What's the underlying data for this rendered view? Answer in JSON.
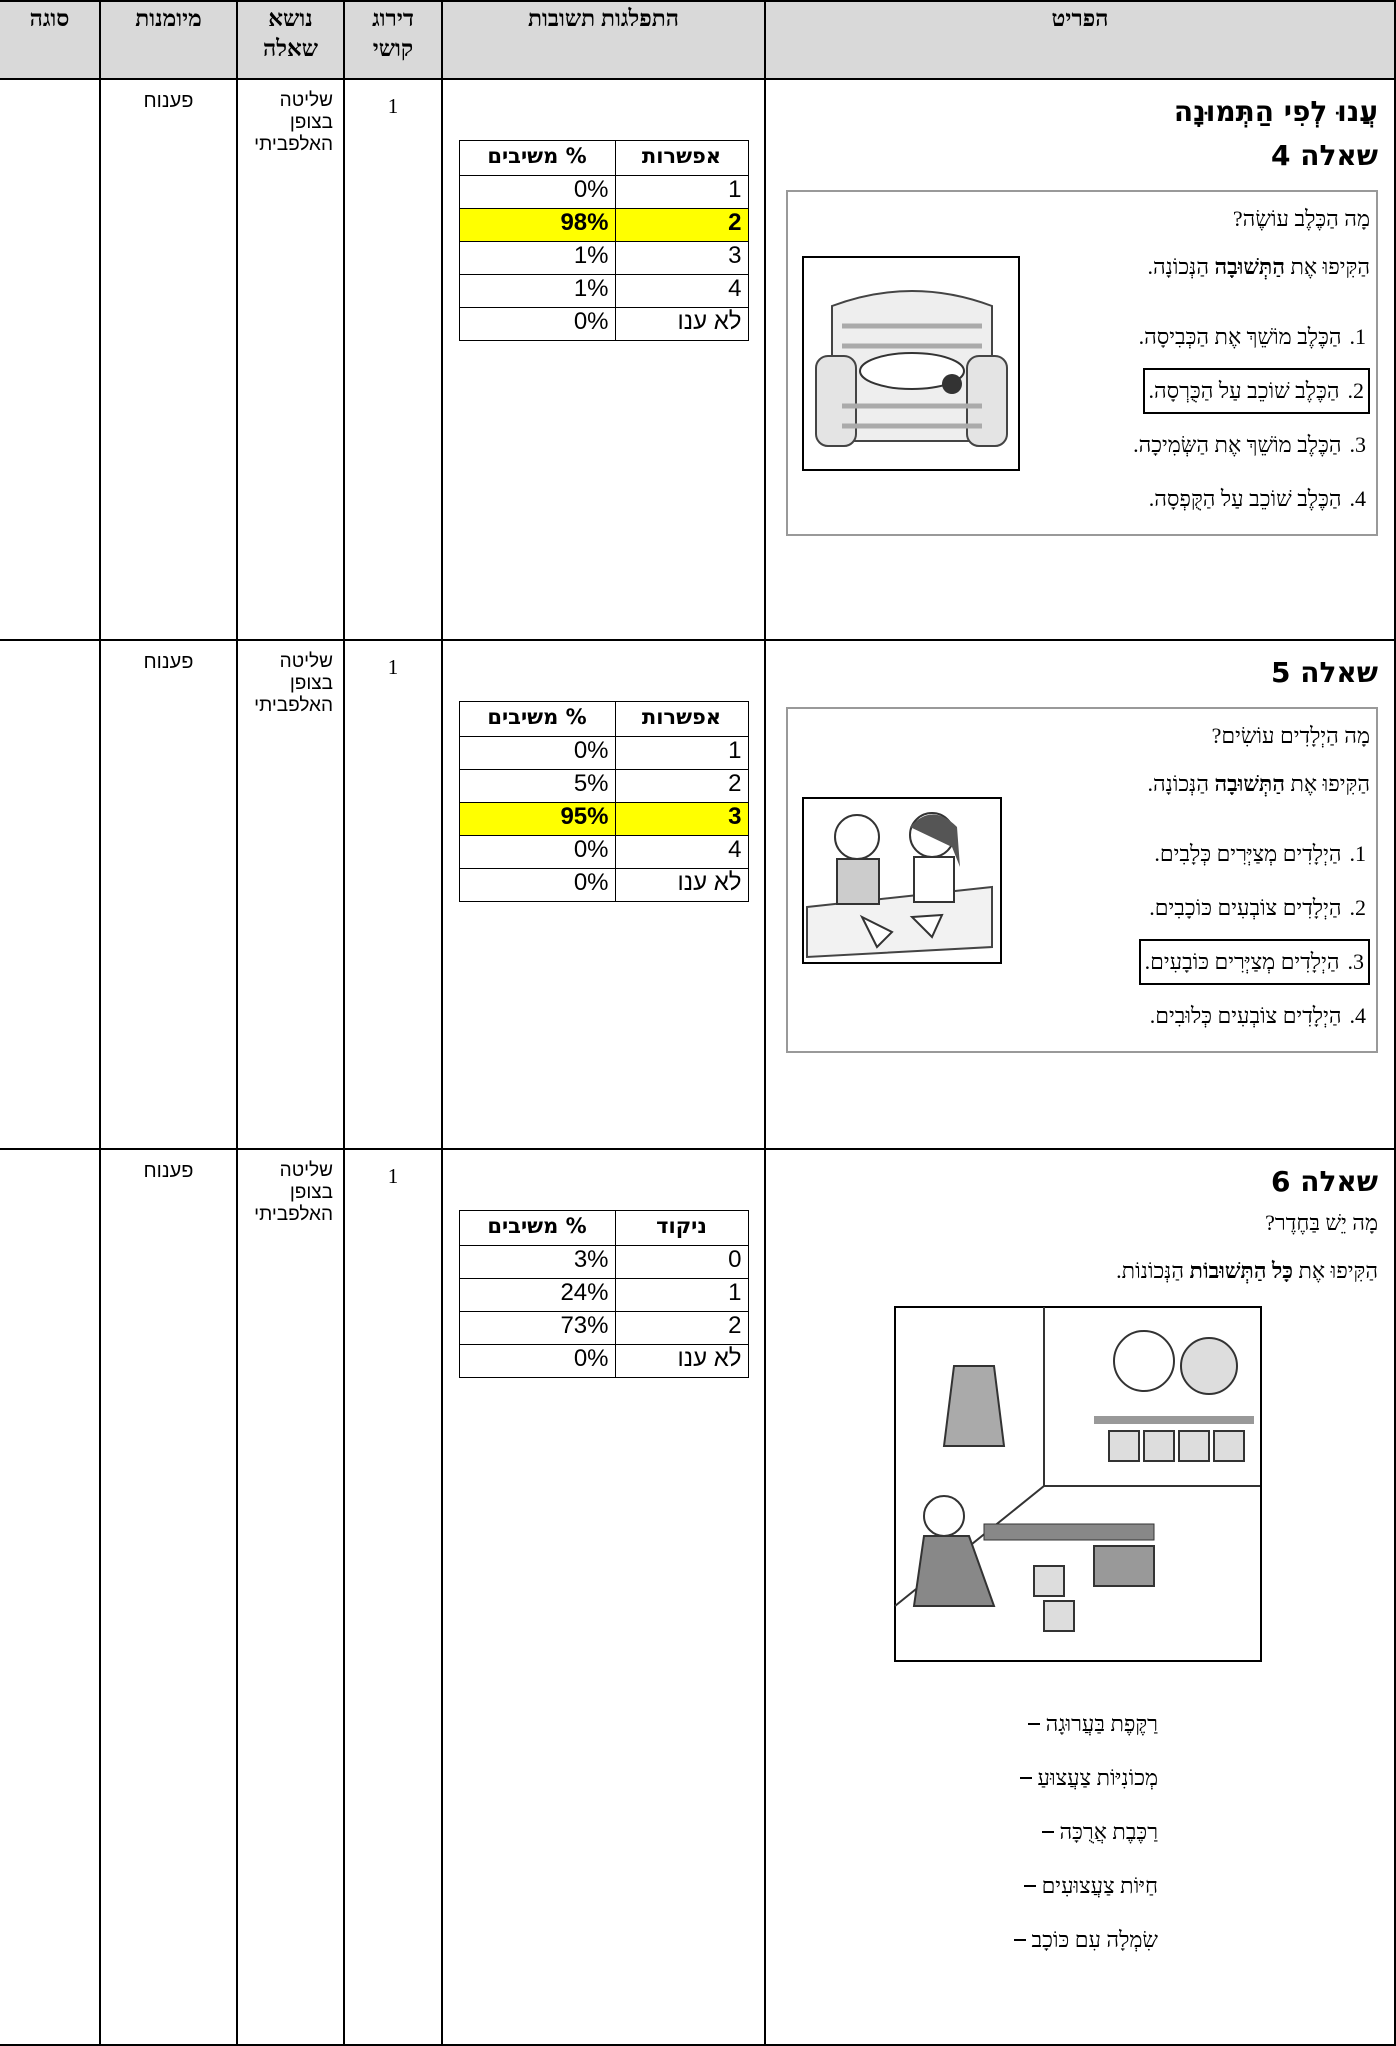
{
  "header": {
    "columns": [
      "הפריט",
      "התפלגות תשובות",
      "דירוג קושי",
      "נושא שאלה",
      "מיומנות",
      "סוגה"
    ]
  },
  "rows": [
    {
      "item": {
        "intro": "עֲנוּ לְפִי הַתְּמוּנָה",
        "heading": "שאלה 4",
        "question": "מָה הַכֶּלֶב עוֹשֶׂה?",
        "instruction": [
          {
            "text": "הַקִּיפוּ אֶת "
          },
          {
            "text": "הַתְּשׁוּבָה",
            "bold": true
          },
          {
            "text": " הַנְּכוֹנָה."
          }
        ],
        "options": [
          {
            "num": "1.",
            "text": "הַכֶּלֶב מוֹשֵׁךְ אֶת הַכְּבִיסָה."
          },
          {
            "num": "2.",
            "text": "הַכֶּלֶב שׁוֹכֵב עַל הַכֻּרְסָה.",
            "circled": true
          },
          {
            "num": "3.",
            "text": "הַכֶּלֶב מוֹשֵׁךְ אֶת הַשְּׂמִיכָה."
          },
          {
            "num": "4.",
            "text": "הַכֶּלֶב שׁוֹכֵב עַל הַקֻּפְסָה."
          }
        ]
      },
      "distribution": {
        "columns": [
          "אפשרות",
          "% משיבים"
        ],
        "rows": [
          {
            "option": "1",
            "percent": "0%"
          },
          {
            "option": "2",
            "percent": "98%",
            "highlight": true
          },
          {
            "option": "3",
            "percent": "1%"
          },
          {
            "option": "4",
            "percent": "1%"
          },
          {
            "option": "לא ענו",
            "percent": "0%"
          }
        ]
      },
      "difficulty": "1",
      "topic": "שליטה בצופן האלפביתי",
      "skill": "פענוח"
    },
    {
      "item": {
        "heading": "שאלה 5",
        "question": "מָה הַיְלָדִים עוֹשִׂים?",
        "instruction": [
          {
            "text": "הַקִּיפוּ אֶת "
          },
          {
            "text": "הַתְּשׁוּבָה",
            "bold": true
          },
          {
            "text": " הַנְּכוֹנָה."
          }
        ],
        "options": [
          {
            "num": "1.",
            "text": "הַיְלָדִים מְצַיְּרִים כְּלָבִים."
          },
          {
            "num": "2.",
            "text": "הַיְלָדִים צוֹבְעִים כּוֹכָבִים."
          },
          {
            "num": "3.",
            "text": "הַיְלָדִים מְצַיְּרִים כּוֹבָעִים.",
            "circled": true
          },
          {
            "num": "4.",
            "text": "הַיְלָדִים צוֹבְעִים כְּלוּבִים."
          }
        ]
      },
      "distribution": {
        "columns": [
          "אפשרות",
          "% משיבים"
        ],
        "rows": [
          {
            "option": "1",
            "percent": "0%"
          },
          {
            "option": "2",
            "percent": "5%"
          },
          {
            "option": "3",
            "percent": "95%",
            "highlight": true
          },
          {
            "option": "4",
            "percent": "0%"
          },
          {
            "option": "לא ענו",
            "percent": "0%"
          }
        ]
      },
      "difficulty": "1",
      "topic": "שליטה בצופן האלפביתי",
      "skill": "פענוח"
    },
    {
      "item": {
        "heading": "שאלה 6",
        "question": "מָה יֵשׁ בַּחֶדֶר?",
        "instruction": [
          {
            "text": "הַקִּיפוּ אֶת "
          },
          {
            "text": "כָּל הַתְּשׁוּבוֹת",
            "bold": true
          },
          {
            "text": " הַנְּכוֹנוֹת."
          }
        ],
        "answers": [
          "רַקֶּפֶת בַּעֲרוּגָה",
          "מְכוֹנִיּוֹת צַעֲצוּעַ",
          "רַכֶּבֶת אֲרֻכָּה",
          "חַיּוֹת צַעֲצוּעִים",
          "שִׂמְלָה עִם כּוֹכָב"
        ]
      },
      "distribution": {
        "columns": [
          "ניקוד",
          "% משיבים"
        ],
        "rows": [
          {
            "option": "0",
            "percent": "3%"
          },
          {
            "option": "1",
            "percent": "24%"
          },
          {
            "option": "2",
            "percent": "73%"
          },
          {
            "option": "לא ענו",
            "percent": "0%"
          }
        ]
      },
      "difficulty": "1",
      "topic": "שליטה בצופן האלפביתי",
      "skill": "פענוח"
    }
  ]
}
